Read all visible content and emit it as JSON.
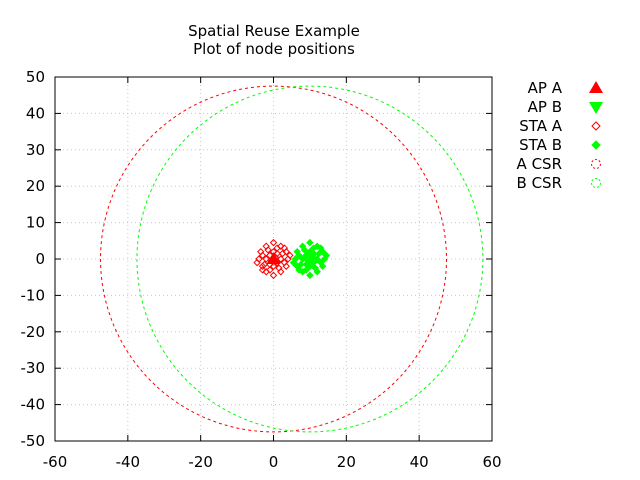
{
  "chart_data": {
    "type": "scatter",
    "title": "Spatial Reuse Example",
    "subtitle": "Plot of node positions",
    "xlim": [
      -60,
      60
    ],
    "ylim": [
      -50,
      50
    ],
    "x_ticks": [
      -60,
      -40,
      -20,
      0,
      20,
      40,
      60
    ],
    "y_ticks": [
      -50,
      -40,
      -30,
      -20,
      -10,
      0,
      10,
      20,
      30,
      40,
      50
    ],
    "grid": true,
    "legend_position": "outside-right",
    "colors": {
      "red": "#ff0000",
      "green": "#00ff00",
      "grid": "#c8c8c8",
      "axis": "#000000"
    },
    "series": [
      {
        "name": "AP A",
        "marker": "triangle-up",
        "color": "#ff0000",
        "points": [
          [
            0,
            0
          ]
        ]
      },
      {
        "name": "AP B",
        "marker": "triangle-down",
        "color": "#00ff00",
        "points": [
          [
            10,
            0
          ]
        ]
      },
      {
        "name": "STA A",
        "marker": "diamond-open",
        "color": "#ff0000",
        "points": [
          [
            -4,
            0
          ],
          [
            -3.5,
            2
          ],
          [
            -3,
            -2
          ],
          [
            -2,
            3.5
          ],
          [
            -2,
            -3.5
          ],
          [
            0,
            4.5
          ],
          [
            0,
            -4.5
          ],
          [
            2,
            3.5
          ],
          [
            2,
            -3.5
          ],
          [
            3.5,
            2
          ],
          [
            3.5,
            -2
          ],
          [
            4,
            0
          ],
          [
            -2,
            0
          ],
          [
            2,
            0
          ],
          [
            0,
            2
          ],
          [
            0,
            -2
          ],
          [
            -1,
            1
          ],
          [
            1,
            -1
          ],
          [
            -3,
            1
          ],
          [
            3,
            -1
          ],
          [
            1,
            3
          ],
          [
            -1,
            -3
          ],
          [
            -4.5,
            -1
          ],
          [
            4.5,
            1
          ],
          [
            -1.5,
            2.5
          ],
          [
            1.5,
            -2.5
          ],
          [
            2.5,
            1.5
          ],
          [
            -2.5,
            -1.5
          ],
          [
            3,
            3
          ],
          [
            -3,
            -3
          ],
          [
            0.5,
            0.5
          ],
          [
            -0.5,
            -0.5
          ],
          [
            1,
            1.5
          ],
          [
            -1,
            -1.5
          ]
        ]
      },
      {
        "name": "STA B",
        "marker": "diamond-filled",
        "color": "#00ff00",
        "points": [
          [
            6,
            0
          ],
          [
            6.5,
            2
          ],
          [
            6.5,
            -2
          ],
          [
            8,
            3.5
          ],
          [
            8,
            -3.5
          ],
          [
            10,
            4.5
          ],
          [
            10,
            -4.5
          ],
          [
            12,
            3.5
          ],
          [
            12,
            -3.5
          ],
          [
            13.5,
            2
          ],
          [
            13.5,
            -2
          ],
          [
            14,
            0
          ],
          [
            8,
            0
          ],
          [
            12,
            0
          ],
          [
            10,
            2
          ],
          [
            10,
            -2
          ],
          [
            9,
            1
          ],
          [
            11,
            -1
          ],
          [
            7,
            1
          ],
          [
            13,
            -1
          ],
          [
            11,
            3
          ],
          [
            9,
            -3
          ],
          [
            5.5,
            -1
          ],
          [
            14.5,
            1
          ],
          [
            8.5,
            2.5
          ],
          [
            11.5,
            -2.5
          ],
          [
            12.5,
            1.5
          ],
          [
            7.5,
            -1.5
          ],
          [
            13,
            3
          ],
          [
            7,
            -3
          ],
          [
            10.5,
            0.5
          ],
          [
            9.5,
            -0.5
          ],
          [
            11,
            1.5
          ],
          [
            9,
            -1.5
          ]
        ]
      },
      {
        "name": "A CSR",
        "marker": "circle-open",
        "color": "#ff0000",
        "circle": {
          "cx": 0,
          "cy": 0,
          "r": 47.5
        }
      },
      {
        "name": "B CSR",
        "marker": "circle-open",
        "color": "#00ff00",
        "circle": {
          "cx": 10,
          "cy": 0,
          "r": 47.5
        }
      }
    ]
  }
}
